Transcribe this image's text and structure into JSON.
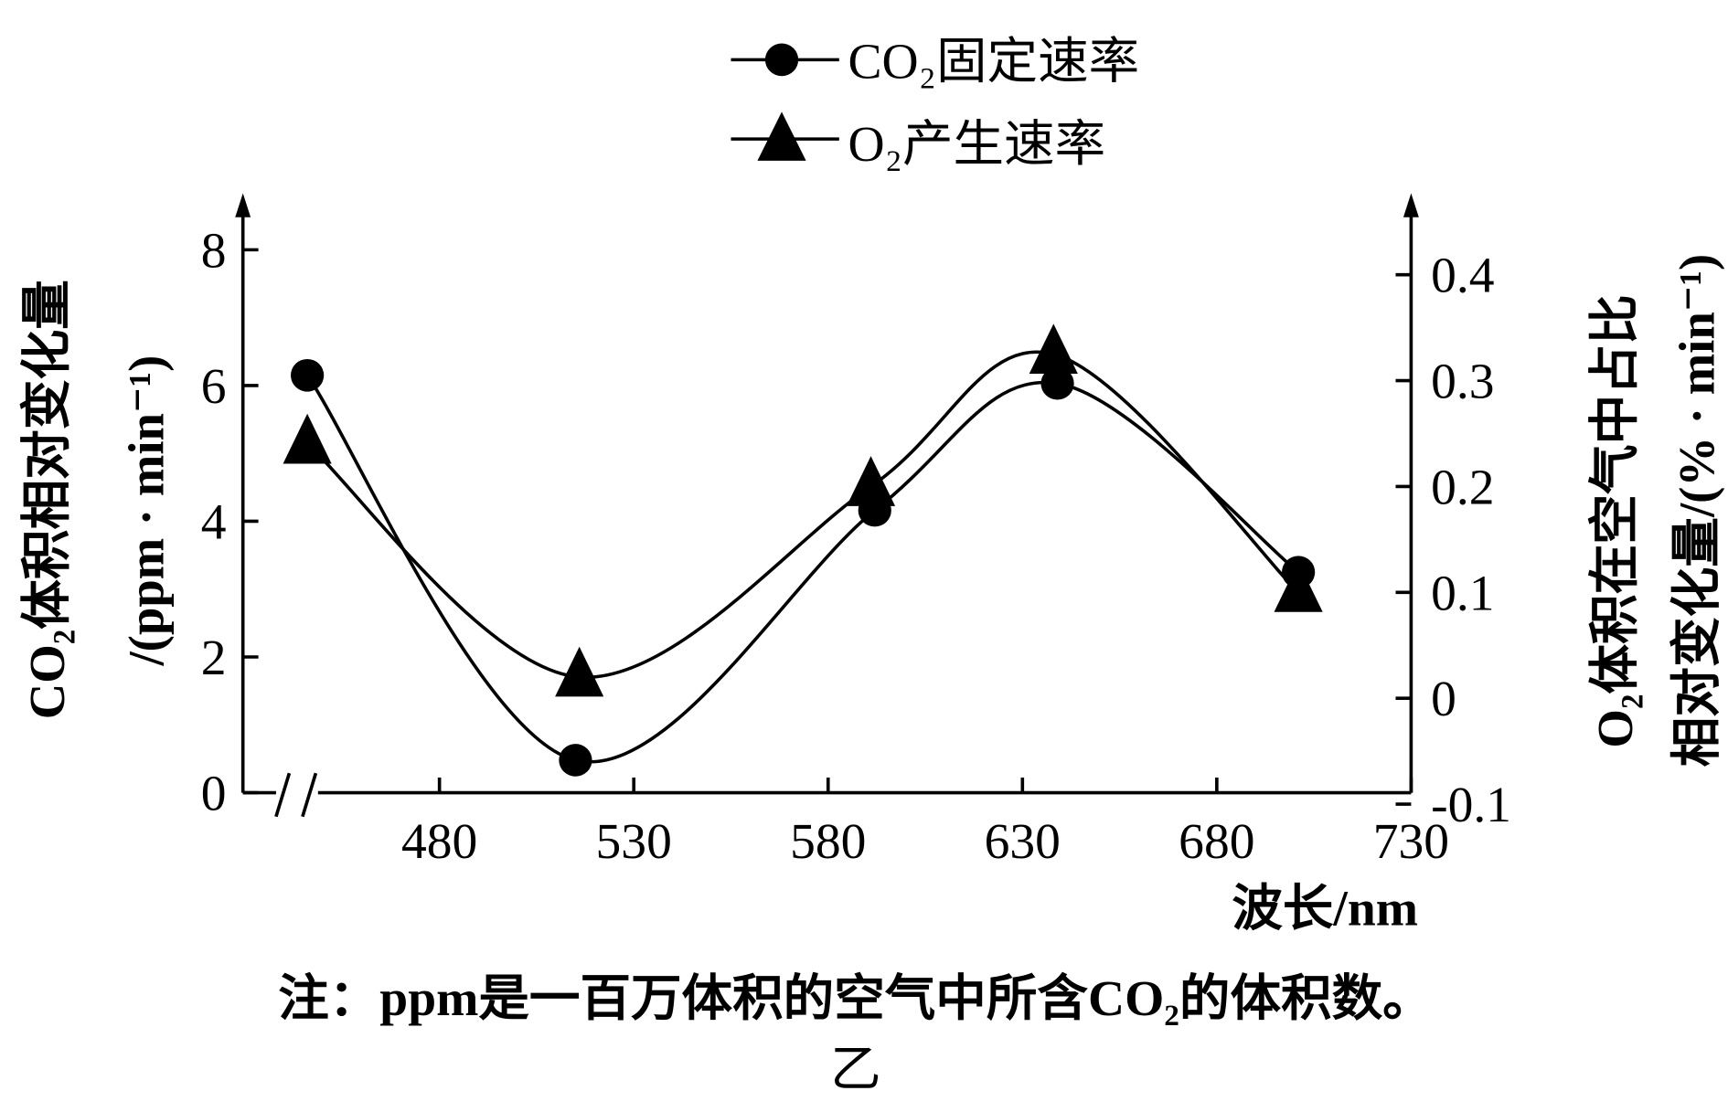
{
  "chart_data": {
    "type": "line",
    "title": "",
    "figure_label": "乙",
    "note": "注：ppm是一百万体积的空气中所含CO₂的体积数。",
    "xlabel": "波长/nm",
    "ylabel_left": [
      "CO₂体积相对变化量",
      "/(ppm · min⁻¹)"
    ],
    "ylabel_right": [
      "O₂体积在空气中占比",
      "相对变化量/(% · min⁻¹)"
    ],
    "x_ticks": [
      "480",
      "530",
      "580",
      "630",
      "680",
      "730"
    ],
    "x_tick_values": [
      480,
      530,
      580,
      630,
      680,
      730
    ],
    "xlim": [
      430,
      730
    ],
    "x_axis_broken": true,
    "y_left_ticks": [
      "0",
      "2",
      "4",
      "6",
      "8"
    ],
    "y_left_tick_values": [
      0,
      2,
      4,
      6,
      8
    ],
    "ylim_left": [
      0,
      8
    ],
    "y_right_ticks": [
      "-0.1",
      "0",
      "0.1",
      "0.2",
      "0.3",
      "0.4"
    ],
    "y_right_tick_values": [
      -0.1,
      0,
      0.1,
      0.2,
      0.3,
      0.4
    ],
    "ylim_right": [
      -0.1,
      0.4
    ],
    "legend_position": "top-center",
    "series": [
      {
        "name": "CO₂固定速率",
        "marker": "circle",
        "axis": "left",
        "x": [
          446,
          515,
          592,
          639,
          701
        ],
        "values": [
          6.15,
          0.48,
          4.16,
          6.03,
          3.25
        ]
      },
      {
        "name": "O₂产生速率",
        "marker": "triangle",
        "axis": "right",
        "x": [
          446,
          516,
          591,
          638,
          701
        ],
        "values": [
          0.24,
          0.02,
          0.2,
          0.325,
          0.1
        ]
      }
    ]
  }
}
